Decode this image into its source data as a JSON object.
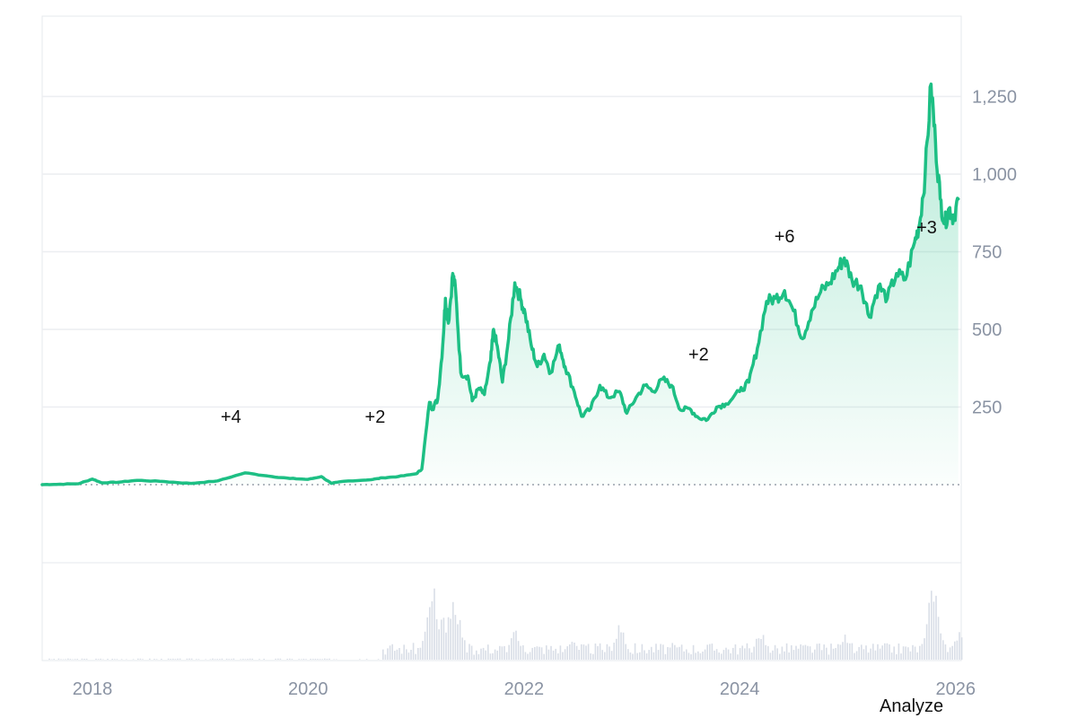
{
  "chart_data": {
    "type": "area",
    "series": [
      {
        "color": "#1dbf84",
        "points": [
          [
            "2017-07-15",
            0
          ],
          [
            "2017-09-01",
            1
          ],
          [
            "2017-11-15",
            3
          ],
          [
            "2018-01-01",
            18
          ],
          [
            "2018-02-01",
            6
          ],
          [
            "2018-04-01",
            8
          ],
          [
            "2018-06-01",
            14
          ],
          [
            "2018-09-01",
            10
          ],
          [
            "2018-12-01",
            4
          ],
          [
            "2019-03-01",
            12
          ],
          [
            "2019-06-01",
            38
          ],
          [
            "2019-09-01",
            26
          ],
          [
            "2019-11-01",
            20
          ],
          [
            "2020-01-01",
            17
          ],
          [
            "2020-02-15",
            26
          ],
          [
            "2020-03-20",
            4
          ],
          [
            "2020-05-01",
            11
          ],
          [
            "2020-08-01",
            16
          ],
          [
            "2020-09-10",
            22
          ],
          [
            "2020-11-01",
            26
          ],
          [
            "2021-01-01",
            35
          ],
          [
            "2021-01-20",
            50
          ],
          [
            "2021-02-15",
            265
          ],
          [
            "2021-02-25",
            245
          ],
          [
            "2021-03-15",
            275
          ],
          [
            "2021-04-01",
            450
          ],
          [
            "2021-04-10",
            600
          ],
          [
            "2021-04-20",
            520
          ],
          [
            "2021-05-05",
            680
          ],
          [
            "2021-05-15",
            620
          ],
          [
            "2021-06-01",
            360
          ],
          [
            "2021-06-25",
            350
          ],
          [
            "2021-07-10",
            270
          ],
          [
            "2021-08-01",
            310
          ],
          [
            "2021-08-20",
            290
          ],
          [
            "2021-09-10",
            400
          ],
          [
            "2021-09-20",
            500
          ],
          [
            "2021-10-05",
            430
          ],
          [
            "2021-10-20",
            330
          ],
          [
            "2021-11-10",
            470
          ],
          [
            "2021-12-01",
            650
          ],
          [
            "2021-12-20",
            600
          ],
          [
            "2022-01-05",
            550
          ],
          [
            "2022-01-25",
            450
          ],
          [
            "2022-02-15",
            380
          ],
          [
            "2022-03-10",
            420
          ],
          [
            "2022-04-01",
            360
          ],
          [
            "2022-05-01",
            450
          ],
          [
            "2022-05-20",
            380
          ],
          [
            "2022-06-20",
            300
          ],
          [
            "2022-07-15",
            220
          ],
          [
            "2022-08-15",
            245
          ],
          [
            "2022-09-15",
            320
          ],
          [
            "2022-10-15",
            280
          ],
          [
            "2022-11-20",
            300
          ],
          [
            "2022-12-15",
            230
          ],
          [
            "2023-01-15",
            280
          ],
          [
            "2023-02-15",
            320
          ],
          [
            "2023-03-15",
            300
          ],
          [
            "2023-04-15",
            340
          ],
          [
            "2023-05-15",
            320
          ],
          [
            "2023-06-15",
            240
          ],
          [
            "2023-07-15",
            245
          ],
          [
            "2023-08-15",
            215
          ],
          [
            "2023-09-15",
            210
          ],
          [
            "2023-10-15",
            250
          ],
          [
            "2023-11-15",
            260
          ],
          [
            "2024-01-01",
            300
          ],
          [
            "2024-02-01",
            330
          ],
          [
            "2024-03-01",
            440
          ],
          [
            "2024-04-01",
            590
          ],
          [
            "2024-05-01",
            600
          ],
          [
            "2024-06-01",
            625
          ],
          [
            "2024-07-01",
            560
          ],
          [
            "2024-08-01",
            470
          ],
          [
            "2024-09-01",
            560
          ],
          [
            "2024-10-01",
            620
          ],
          [
            "2024-11-01",
            650
          ],
          [
            "2024-12-01",
            700
          ],
          [
            "2024-12-20",
            730
          ],
          [
            "2025-01-15",
            660
          ],
          [
            "2025-02-15",
            640
          ],
          [
            "2025-03-15",
            540
          ],
          [
            "2025-04-15",
            640
          ],
          [
            "2025-05-15",
            600
          ],
          [
            "2025-06-15",
            680
          ],
          [
            "2025-07-15",
            660
          ],
          [
            "2025-08-15",
            780
          ],
          [
            "2025-09-01",
            840
          ],
          [
            "2025-09-20",
            1000
          ],
          [
            "2025-10-10",
            1290
          ],
          [
            "2025-10-25",
            1100
          ],
          [
            "2025-11-10",
            920
          ],
          [
            "2025-11-25",
            840
          ],
          [
            "2025-12-10",
            890
          ],
          [
            "2025-12-25",
            860
          ],
          [
            "2026-01-10",
            920
          ]
        ]
      }
    ],
    "volume_peaks": [
      [
        "2021-02-15",
        0.6
      ],
      [
        "2021-03-01",
        0.75
      ],
      [
        "2021-04-01",
        0.55
      ],
      [
        "2021-05-05",
        0.78
      ],
      [
        "2021-05-20",
        0.5
      ],
      [
        "2021-12-01",
        0.35
      ],
      [
        "2022-06-15",
        0.25
      ],
      [
        "2022-11-20",
        0.45
      ],
      [
        "2024-03-10",
        0.35
      ],
      [
        "2024-12-15",
        0.3
      ],
      [
        "2025-10-10",
        0.95
      ],
      [
        "2025-10-25",
        0.7
      ],
      [
        "2026-01-10",
        0.3
      ]
    ],
    "yaxis": {
      "ticks": [
        "250",
        "500",
        "750",
        "1,000",
        "1,250"
      ],
      "tick_values": [
        250,
        500,
        750,
        1000,
        1250
      ],
      "range": [
        0,
        1450
      ],
      "position": "right",
      "baseline": 0
    },
    "xaxis": {
      "ticks": [
        "2018",
        "2020",
        "2022",
        "2024",
        "2026"
      ],
      "tick_values": [
        "2018-01-01",
        "2020-01-01",
        "2022-01-01",
        "2024-01-01",
        "2026-01-01"
      ],
      "range": [
        "2017-07-15",
        "2026-01-20"
      ]
    },
    "annotations": [
      {
        "text": "+4",
        "x": "2019-04-15",
        "y": 220
      },
      {
        "text": "+2",
        "x": "2020-08-15",
        "y": 220
      },
      {
        "text": "+2",
        "x": "2023-08-15",
        "y": 420
      },
      {
        "text": "+6",
        "x": "2024-06-01",
        "y": 800
      },
      {
        "text": "+3",
        "x": "2025-09-25",
        "y": 830
      }
    ],
    "grid": true
  },
  "footer": {
    "analyze_label": "Analyze"
  }
}
